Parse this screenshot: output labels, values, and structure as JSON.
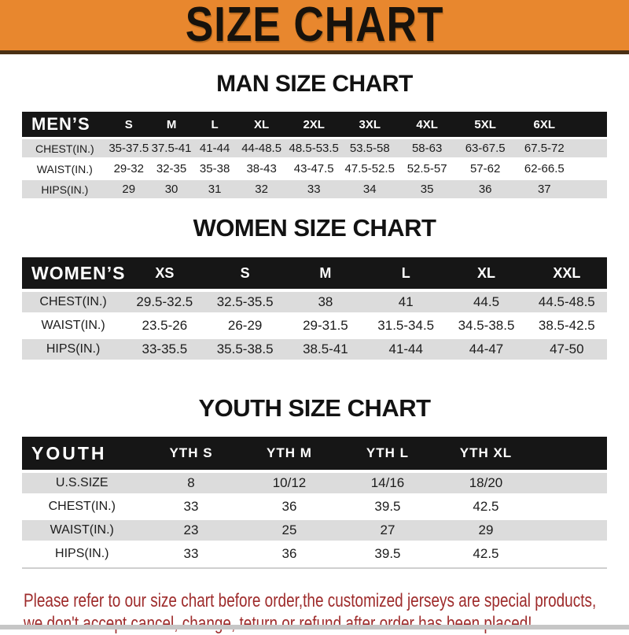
{
  "banner": {
    "title": "SIZE CHART"
  },
  "colors": {
    "banner_orange": "#E8872E",
    "banner_underline_brown": "#4A3014",
    "header_bar_black": "#161616",
    "row_stripe_gray": "#DCDCDC",
    "note_red": "#9E2B2B"
  },
  "sections": {
    "men": {
      "heading": "MAN SIZE CHART",
      "table": {
        "corner": "MEN’S",
        "sizes": [
          "S",
          "M",
          "L",
          "XL",
          "2XL",
          "3XL",
          "4XL",
          "5XL",
          "6XL"
        ],
        "rows": [
          {
            "label": "CHEST(IN.)",
            "values": [
              "35-37.5",
              "37.5-41",
              "41-44",
              "44-48.5",
              "48.5-53.5",
              "53.5-58",
              "58-63",
              "63-67.5",
              "67.5-72"
            ]
          },
          {
            "label": "WAIST(IN.)",
            "values": [
              "29-32",
              "32-35",
              "35-38",
              "38-43",
              "43-47.5",
              "47.5-52.5",
              "52.5-57",
              "57-62",
              "62-66.5"
            ]
          },
          {
            "label": "HIPS(IN.)",
            "values": [
              "29",
              "30",
              "31",
              "32",
              "33",
              "34",
              "35",
              "36",
              "37"
            ]
          }
        ]
      }
    },
    "women": {
      "heading": "WOMEN SIZE CHART",
      "table": {
        "corner": "WOMEN’S",
        "sizes": [
          "XS",
          "S",
          "M",
          "L",
          "XL",
          "XXL"
        ],
        "rows": [
          {
            "label": "CHEST(IN.)",
            "values": [
              "29.5-32.5",
              "32.5-35.5",
              "38",
              "41",
              "44.5",
              "44.5-48.5"
            ]
          },
          {
            "label": "WAIST(IN.)",
            "values": [
              "23.5-26",
              "26-29",
              "29-31.5",
              "31.5-34.5",
              "34.5-38.5",
              "38.5-42.5"
            ]
          },
          {
            "label": "HIPS(IN.)",
            "values": [
              "33-35.5",
              "35.5-38.5",
              "38.5-41",
              "41-44",
              "44-47",
              "47-50"
            ]
          }
        ]
      }
    },
    "youth": {
      "heading": "YOUTH SIZE CHART",
      "table": {
        "corner": "YOUTH",
        "sizes": [
          "YTH S",
          "YTH M",
          "YTH L",
          "YTH XL"
        ],
        "rows": [
          {
            "label": "U.S.SIZE",
            "values": [
              "8",
              "10/12",
              "14/16",
              "18/20"
            ]
          },
          {
            "label": "CHEST(IN.)",
            "values": [
              "33",
              "36",
              "39.5",
              "42.5"
            ]
          },
          {
            "label": "WAIST(IN.)",
            "values": [
              "23",
              "25",
              "27",
              "29"
            ]
          },
          {
            "label": "HIPS(IN.)",
            "values": [
              "33",
              "36",
              "39.5",
              "42.5"
            ]
          }
        ]
      }
    }
  },
  "footer": {
    "line1": "Please refer to our size chart before order,the customized jerseys are special products,",
    "line2": "we don't accept cancel, change, teturn or refund after order has been placed!"
  }
}
